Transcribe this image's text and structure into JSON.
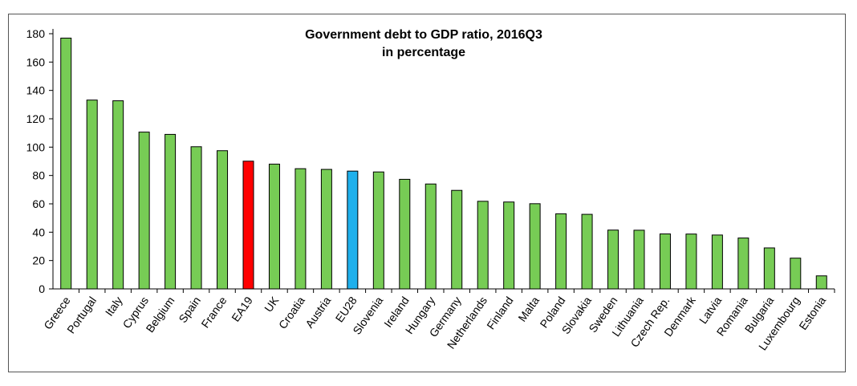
{
  "chart_data": {
    "type": "bar",
    "title": "Government debt to GDP ratio, 2016Q3",
    "subtitle": "in percentage",
    "xlabel": "",
    "ylabel": "",
    "ylim": [
      0,
      180
    ],
    "yticks": [
      0,
      20,
      40,
      60,
      80,
      100,
      120,
      140,
      160,
      180
    ],
    "grid": false,
    "categories": [
      "Greece",
      "Portugal",
      "Italy",
      "Cyprus",
      "Belgium",
      "Spain",
      "France",
      "EA19",
      "UK",
      "Croatia",
      "Austria",
      "EU28",
      "Slovenia",
      "Ireland",
      "Hungary",
      "Germany",
      "Netherlands",
      "Finland",
      "Malta",
      "Poland",
      "Slovakia",
      "Sweden",
      "Lithuania",
      "Czech Rep.",
      "Denmark",
      "Latvia",
      "Romania",
      "Bulgaria",
      "Luxembourg",
      "Estonia"
    ],
    "values": [
      176.9,
      133.2,
      132.7,
      110.6,
      109.0,
      100.3,
      97.5,
      90.1,
      88.0,
      84.8,
      84.3,
      83.1,
      82.5,
      77.3,
      74.0,
      69.5,
      61.8,
      61.3,
      60.1,
      53.0,
      52.6,
      41.5,
      41.4,
      38.8,
      38.7,
      38.0,
      35.9,
      28.9,
      21.7,
      9.2
    ],
    "colors": {
      "default": "#77cc55",
      "EA19": "#ff0000",
      "EU28": "#1fb0ec"
    }
  }
}
